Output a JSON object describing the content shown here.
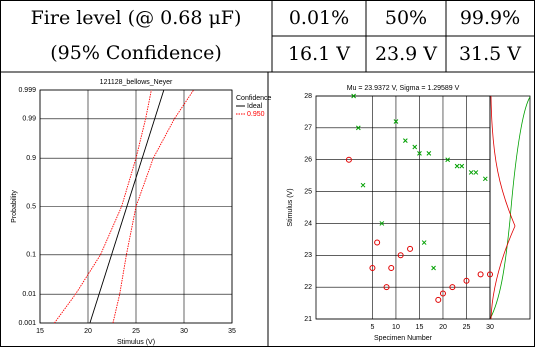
{
  "table": {
    "label": [
      "Fire level (@ 0.68 μF)",
      "(95% Confidence)"
    ],
    "header": [
      "0.01%",
      "50%",
      "99.9%"
    ],
    "values": [
      "16.1 V",
      "23.9 V",
      "31.5 V"
    ]
  },
  "chart_data": [
    {
      "type": "line",
      "title": "121128_bellows_Neyer",
      "xlabel": "Stimulus (V)",
      "ylabel": "Probability",
      "xlim": [
        15,
        35
      ],
      "xticks": [
        15,
        20,
        25,
        30,
        35
      ],
      "ylim": [
        0.001,
        0.999
      ],
      "yticks": [
        0.001,
        0.01,
        0.1,
        0.5,
        0.9,
        0.99,
        0.999
      ],
      "yscale": "probit",
      "grid": true,
      "legend_title": "Confidence",
      "legend": "right",
      "series": [
        {
          "name": "Ideal",
          "color": "#000000",
          "style": "solid",
          "x": [
            20.2,
            27.9
          ],
          "values": [
            0.001,
            0.999
          ]
        },
        {
          "name": "0.950",
          "color": "#ff0000",
          "style": "dotted",
          "x": [
            16.5,
            18.7,
            21.3,
            23.5,
            25.0,
            26.0,
            26.6,
            null,
            22.6,
            23.3,
            24.0,
            25.0,
            26.8,
            29.0,
            31.0
          ],
          "values": [
            0.001,
            0.01,
            0.1,
            0.5,
            0.9,
            0.99,
            0.999,
            null,
            0.001,
            0.01,
            0.1,
            0.5,
            0.9,
            0.99,
            0.999
          ]
        }
      ]
    },
    {
      "type": "scatter",
      "title": "Mu = 23.9372 V, Sigma = 1.29589 V",
      "xlabel": "Specimen Number",
      "ylabel": "Stimulus (V)",
      "xlim": [
        -7,
        30
      ],
      "xticks": [
        5,
        10,
        15,
        20,
        25,
        30
      ],
      "ylim": [
        21,
        28
      ],
      "yticks": [
        21,
        22,
        23,
        24,
        25,
        26,
        27,
        28
      ],
      "grid": true,
      "series": [
        {
          "marker": "x",
          "color": "#00a000",
          "x": [
            1,
            2,
            3,
            7,
            10,
            12,
            14,
            15,
            17,
            16,
            18,
            21,
            23,
            24,
            26,
            27,
            29
          ],
          "values": [
            28,
            27,
            25.2,
            24,
            27.2,
            26.6,
            26.4,
            26.2,
            26.2,
            23.4,
            22.6,
            26,
            25.8,
            25.8,
            25.6,
            25.6,
            25.4
          ]
        },
        {
          "marker": "o",
          "color": "#e00000",
          "x": [
            0,
            5,
            6,
            8,
            9,
            11,
            13,
            19,
            20,
            22,
            25,
            28,
            30
          ],
          "values": [
            26,
            22.6,
            23.4,
            22,
            22.6,
            23,
            23.2,
            21.6,
            21.8,
            22,
            22.2,
            22.4,
            22.4
          ]
        }
      ]
    }
  ]
}
